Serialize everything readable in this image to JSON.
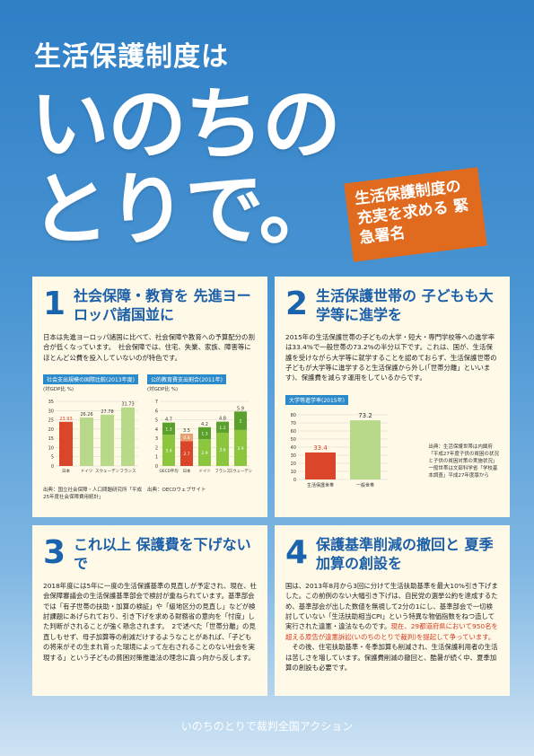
{
  "header": {
    "subtitle": "生活保護制度は",
    "title_line1": "いのちの",
    "title_line2": "とりで。",
    "badge": "生活保護制度の 充実を求める 緊急署名"
  },
  "sections": [
    {
      "num": "1",
      "title": "社会保障・教育を 先進ヨーロッパ諸国並に",
      "text": "日本は先進ヨーロッパ諸国に比べて、社会保障や教育への予算配分の割合が低くなっています。　社会保障では、住宅、失業、家族、障害等にほとんど公費を投入していないのが特色です。",
      "chart1": {
        "title": "社会支出規模の国際比較(2013年度)",
        "unit": "(対GDP比 %)",
        "source": "出典：国立社会保障・人口問題研究所「平成25年度社会保障費用統計」"
      },
      "chart2": {
        "title": "公的教育費支出割合(2011年)",
        "unit": "(対GDP比 %)",
        "source": "出典：OECDウェブサイト"
      }
    },
    {
      "num": "2",
      "title": "生活保護世帯の 子どもも大学等に進学を",
      "text": "2015年の生活保護世帯の子どもの大学・短大・専門学校等への進学率は33.4%で一般世帯の73.2%の半分以下です。これは、国が、生活保護を受けながら大学等に就学することを認めておらず、生活保護世帯の子どもが大学等に進学すると生活保護から外し(「世帯分離」といいます)、保護費を減らす運用をしているからです。",
      "chart": {
        "title": "大学等進学率(2015年)",
        "source": "出典：生活保護世帯は内閣府「平成27年度子供の貧困の状況と子供の貧困対策の実施状況」一般世帯は文部科学省「学校基本調査」平成27年度版から"
      }
    },
    {
      "num": "3",
      "title": "これ以上 保護費を下げないで",
      "text": "2018年度には5年に一度の生活保護基準の見直しが予定され、現在、社会保障審議会の生活保護基準部会で検討が重ねられています。基準部会では「有子世帯の扶助・加算の検証」や「級地区分の見直し」などが検討課題にあげられており、引き下げを求める財務省の意向を「忖度」した判断がされることが強く懸念されます。　2で述べた「世帯分離」の見直しもせず、母子加算等の削減だけするようなことがあれば、「子どもの将来がその生まれ育った環境によって左右されることのない社会を実現する」という子どもの貧困対策推進法の理念に真っ向から反します。"
    },
    {
      "num": "4",
      "title": "保護基準削減の撤回と 夏季加算の創設を",
      "text": "国は、2013年8月から3回に分けて生活扶助基準を最大10%引き下げました。この前例のない大幅引き下げは、自民党の選挙公約を達成するため、基準部会が出した数値を無視して2分の1にし、基準部会で一切検討していない「生活扶助相当CPI」という特異な物価指数をねつ造して実行された違憲・違法なものです。",
      "text_red": "現在、29都道府県において950名を超える原告が違憲訴訟(いのちのとりで裁判)を提起して争っています。",
      "text2": "　その後、住宅扶助基準・冬季加算も削減され、生活保護利用者の生活は苦しさを増しています。保護費削減の撤回と、酷暑が続く中、夏季加算の創設も必要です。"
    }
  ],
  "footer": "いのちのとりで裁判全国アクション",
  "chart_data": [
    {
      "type": "bar",
      "title": "社会支出規模の国際比較(2013年度)",
      "ylabel": "(対GDP比 %)",
      "categories": [
        "日本",
        "ドイツ",
        "スウェーデン",
        "フランス"
      ],
      "values": [
        23.93,
        26.26,
        27.78,
        31.73
      ],
      "ylim": [
        0,
        35
      ]
    },
    {
      "type": "bar",
      "title": "公的教育費支出割合(2011年)",
      "ylabel": "(対GDP比 %)",
      "categories": [
        "OECD平均",
        "日本",
        "ドイツ",
        "フランス",
        "スウェーデン"
      ],
      "series": [
        {
          "name": "高等教育",
          "values": [
            1.3,
            0.8,
            1.3,
            1.2,
            2.0
          ]
        },
        {
          "name": "初等中等教育",
          "values": [
            3.4,
            2.7,
            2.9,
            3.6,
            3.9
          ]
        }
      ],
      "totals": [
        4.7,
        3.5,
        4.2,
        4.8,
        5.9
      ],
      "ylim": [
        0,
        7
      ]
    },
    {
      "type": "bar",
      "title": "大学等進学率(2015年)",
      "categories": [
        "生活保護世帯",
        "一般世帯"
      ],
      "values": [
        33.4,
        73.2
      ],
      "ylim": [
        0,
        80
      ]
    }
  ]
}
